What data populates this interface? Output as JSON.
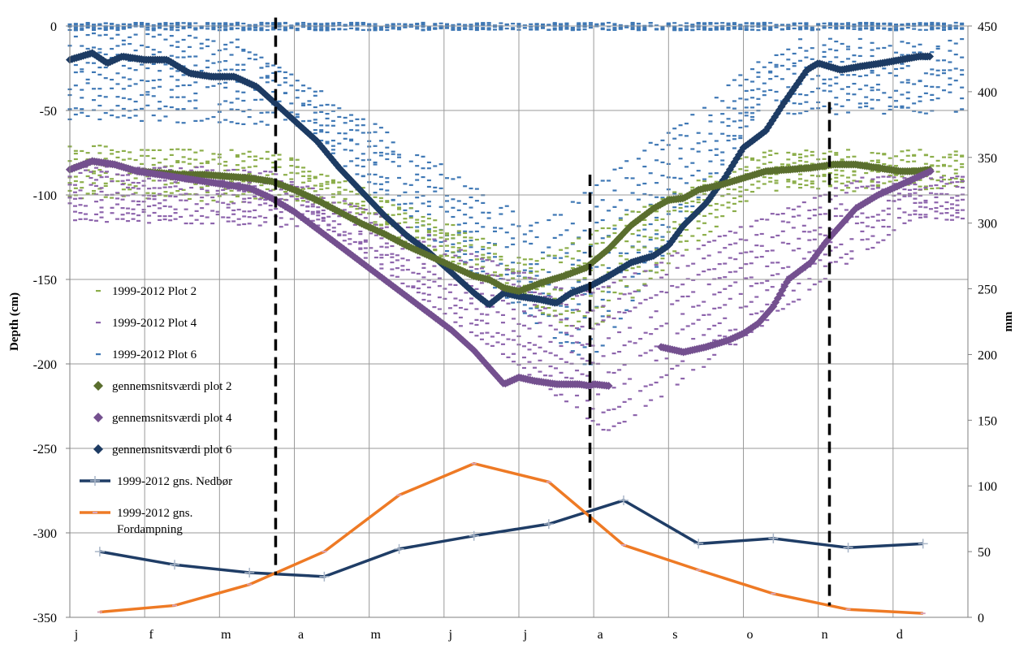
{
  "chart_data": {
    "type": "scatter",
    "title": "",
    "xlabel": "",
    "ylabel": "Depth (cm)",
    "y2label": "mm",
    "categories": [
      "j",
      "f",
      "m",
      "a",
      "m",
      "j",
      "j",
      "a",
      "s",
      "o",
      "n",
      "d"
    ],
    "ylim": [
      -350,
      0
    ],
    "yticks": [
      0,
      -50,
      -100,
      -150,
      -200,
      -250,
      -300,
      -350
    ],
    "y2lim": [
      0,
      450
    ],
    "y2ticks": [
      450,
      400,
      350,
      300,
      250,
      200,
      150,
      100,
      50,
      0
    ],
    "grid": true,
    "legend_position": "left",
    "colors": {
      "plot2": "#8cae4a",
      "plot4": "#8d64ac",
      "plot6": "#3f78b5",
      "mean2": "#5a6e2e",
      "mean4": "#74508f",
      "mean6": "#1d3b63",
      "nedbor": "#1f3d66",
      "fordampning": "#ee7a25",
      "dashed": "#000000"
    },
    "legend": [
      {
        "key": "plot2",
        "label": "1999-2012 Plot 2",
        "marker": "dash"
      },
      {
        "key": "plot4",
        "label": "1999-2012 Plot 4",
        "marker": "dash"
      },
      {
        "key": "plot6",
        "label": "1999-2012 Plot 6",
        "marker": "dash"
      },
      {
        "key": "mean2",
        "label": "gennemsnitsværdi plot 2",
        "marker": "diamond"
      },
      {
        "key": "mean4",
        "label": "gennemsnitsværdi plot 4",
        "marker": "diamond"
      },
      {
        "key": "mean6",
        "label": "gennemsnitsværdi plot 6",
        "marker": "diamond"
      },
      {
        "key": "nedbor",
        "label": "1999-2012 gns. Nedbør",
        "marker": "line-plus"
      },
      {
        "key": "fordampning",
        "label": "1999-2012 gns. Fordampning",
        "marker": "line-dash"
      }
    ],
    "series": [
      {
        "key": "mean6",
        "axis": "left",
        "points": [
          [
            0.0,
            -20
          ],
          [
            0.3,
            -16
          ],
          [
            0.5,
            -22
          ],
          [
            0.7,
            -18
          ],
          [
            1.0,
            -20
          ],
          [
            1.3,
            -20
          ],
          [
            1.6,
            -28
          ],
          [
            1.9,
            -30
          ],
          [
            2.2,
            -30
          ],
          [
            2.5,
            -36
          ],
          [
            2.75,
            -46
          ],
          [
            3.0,
            -56
          ],
          [
            3.3,
            -68
          ],
          [
            3.6,
            -84
          ],
          [
            3.9,
            -98
          ],
          [
            4.2,
            -112
          ],
          [
            4.5,
            -124
          ],
          [
            4.8,
            -134
          ],
          [
            5.1,
            -146
          ],
          [
            5.4,
            -158
          ],
          [
            5.6,
            -165
          ],
          [
            5.8,
            -158
          ],
          [
            6.0,
            -160
          ],
          [
            6.3,
            -162
          ],
          [
            6.5,
            -164
          ],
          [
            6.7,
            -158
          ],
          [
            6.95,
            -154
          ],
          [
            7.2,
            -148
          ],
          [
            7.5,
            -140
          ],
          [
            7.8,
            -136
          ],
          [
            8.0,
            -130
          ],
          [
            8.2,
            -118
          ],
          [
            8.5,
            -105
          ],
          [
            8.75,
            -90
          ],
          [
            9.0,
            -72
          ],
          [
            9.3,
            -62
          ],
          [
            9.55,
            -45
          ],
          [
            9.85,
            -26
          ],
          [
            10.0,
            -22
          ],
          [
            10.3,
            -26
          ],
          [
            10.55,
            -24
          ],
          [
            10.85,
            -22
          ],
          [
            11.1,
            -20
          ],
          [
            11.35,
            -18
          ],
          [
            11.5,
            -18
          ]
        ]
      },
      {
        "key": "mean2",
        "axis": "left",
        "points": [
          [
            0.0,
            -85
          ],
          [
            0.3,
            -80
          ],
          [
            0.6,
            -82
          ],
          [
            0.9,
            -86
          ],
          [
            1.2,
            -87
          ],
          [
            1.5,
            -88
          ],
          [
            1.8,
            -88
          ],
          [
            2.1,
            -89
          ],
          [
            2.4,
            -90
          ],
          [
            2.7,
            -92
          ],
          [
            3.0,
            -97
          ],
          [
            3.3,
            -103
          ],
          [
            3.6,
            -110
          ],
          [
            3.9,
            -117
          ],
          [
            4.2,
            -123
          ],
          [
            4.5,
            -130
          ],
          [
            4.8,
            -136
          ],
          [
            5.1,
            -142
          ],
          [
            5.4,
            -148
          ],
          [
            5.6,
            -150
          ],
          [
            5.8,
            -155
          ],
          [
            6.0,
            -157
          ],
          [
            6.3,
            -152
          ],
          [
            6.6,
            -148
          ],
          [
            6.9,
            -143
          ],
          [
            7.2,
            -132
          ],
          [
            7.5,
            -118
          ],
          [
            7.8,
            -108
          ],
          [
            8.0,
            -103
          ],
          [
            8.2,
            -102
          ],
          [
            8.4,
            -97
          ],
          [
            8.7,
            -94
          ],
          [
            9.0,
            -90
          ],
          [
            9.3,
            -86
          ],
          [
            9.6,
            -85
          ],
          [
            9.9,
            -84
          ],
          [
            10.2,
            -82
          ],
          [
            10.5,
            -82
          ],
          [
            10.8,
            -84
          ],
          [
            11.1,
            -86
          ],
          [
            11.3,
            -86
          ],
          [
            11.5,
            -85
          ]
        ]
      },
      {
        "key": "mean4",
        "axis": "left",
        "points": [
          [
            0.0,
            -85
          ],
          [
            0.3,
            -80
          ],
          [
            0.6,
            -82
          ],
          [
            0.9,
            -86
          ],
          [
            1.2,
            -88
          ],
          [
            1.5,
            -90
          ],
          [
            1.8,
            -92
          ],
          [
            2.1,
            -94
          ],
          [
            2.4,
            -96
          ],
          [
            2.7,
            -102
          ],
          [
            3.0,
            -110
          ],
          [
            3.3,
            -120
          ],
          [
            3.6,
            -130
          ],
          [
            3.9,
            -140
          ],
          [
            4.2,
            -150
          ],
          [
            4.5,
            -160
          ],
          [
            4.8,
            -170
          ],
          [
            5.1,
            -180
          ],
          [
            5.4,
            -192
          ],
          [
            5.6,
            -202
          ],
          [
            5.8,
            -212
          ],
          [
            6.0,
            -208
          ],
          [
            6.2,
            -210
          ],
          [
            6.5,
            -212
          ],
          [
            6.8,
            -212
          ],
          [
            6.95,
            -213
          ],
          [
            7.0,
            -212
          ],
          [
            7.2,
            -213
          ]
        ]
      },
      {
        "key": "mean4",
        "axis": "left",
        "points": [
          [
            7.9,
            -190
          ],
          [
            8.2,
            -193
          ],
          [
            8.5,
            -190
          ],
          [
            8.8,
            -186
          ],
          [
            9.0,
            -182
          ],
          [
            9.2,
            -176
          ],
          [
            9.4,
            -166
          ],
          [
            9.6,
            -150
          ],
          [
            9.9,
            -140
          ],
          [
            10.1,
            -128
          ],
          [
            10.3,
            -118
          ],
          [
            10.5,
            -108
          ],
          [
            10.8,
            -100
          ],
          [
            11.0,
            -96
          ],
          [
            11.2,
            -92
          ],
          [
            11.4,
            -88
          ],
          [
            11.5,
            -86
          ]
        ]
      },
      {
        "key": "nedbor",
        "axis": "right",
        "points": [
          [
            0.4,
            50
          ],
          [
            1.4,
            40
          ],
          [
            2.4,
            34
          ],
          [
            3.4,
            31
          ],
          [
            4.4,
            52
          ],
          [
            5.4,
            62
          ],
          [
            6.4,
            71
          ],
          [
            7.4,
            89
          ],
          [
            8.4,
            56
          ],
          [
            9.4,
            60
          ],
          [
            10.4,
            53
          ],
          [
            11.4,
            56
          ]
        ]
      },
      {
        "key": "fordampning",
        "axis": "right",
        "points": [
          [
            0.4,
            4
          ],
          [
            1.4,
            9
          ],
          [
            2.4,
            25
          ],
          [
            3.4,
            50
          ],
          [
            4.4,
            93
          ],
          [
            5.4,
            117
          ],
          [
            6.4,
            103
          ],
          [
            7.4,
            55
          ],
          [
            8.4,
            36
          ],
          [
            9.4,
            18
          ],
          [
            10.4,
            6
          ],
          [
            11.4,
            3
          ]
        ]
      }
    ],
    "dashed_markers": [
      {
        "x": 2.75,
        "y_from": 5,
        "y_to": -325
      },
      {
        "x": 6.95,
        "y_from": -88,
        "y_to": -294
      },
      {
        "x": 10.15,
        "y_from": -45,
        "y_to": -343
      }
    ]
  }
}
